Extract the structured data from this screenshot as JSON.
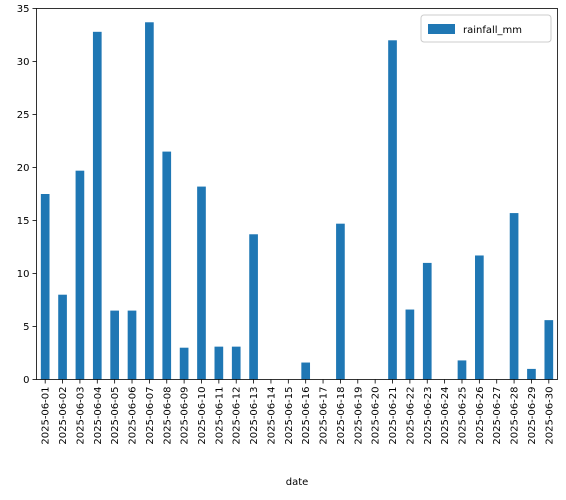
{
  "chart_data": {
    "type": "bar",
    "xlabel": "date",
    "ylabel": "",
    "ylim": [
      0,
      35
    ],
    "yticks": [
      0,
      5,
      10,
      15,
      20,
      25,
      30,
      35
    ],
    "legend_position": "top-right",
    "grid": false,
    "categories": [
      "2025-06-01",
      "2025-06-02",
      "2025-06-03",
      "2025-06-04",
      "2025-06-05",
      "2025-06-06",
      "2025-06-07",
      "2025-06-08",
      "2025-06-09",
      "2025-06-10",
      "2025-06-11",
      "2025-06-12",
      "2025-06-13",
      "2025-06-14",
      "2025-06-15",
      "2025-06-16",
      "2025-06-17",
      "2025-06-18",
      "2025-06-19",
      "2025-06-20",
      "2025-06-21",
      "2025-06-22",
      "2025-06-23",
      "2025-06-24",
      "2025-06-25",
      "2025-06-26",
      "2025-06-27",
      "2025-06-28",
      "2025-06-29",
      "2025-06-30"
    ],
    "series": [
      {
        "name": "rainfall_mm",
        "color": "#1f77b4",
        "values": [
          17.5,
          8.0,
          19.7,
          32.8,
          6.5,
          6.5,
          33.7,
          21.5,
          3.0,
          18.2,
          3.1,
          3.1,
          13.7,
          0,
          0,
          1.6,
          0,
          14.7,
          0,
          0,
          32.0,
          6.6,
          11.0,
          0,
          1.8,
          11.7,
          0,
          15.7,
          1.0,
          5.6
        ]
      }
    ]
  }
}
